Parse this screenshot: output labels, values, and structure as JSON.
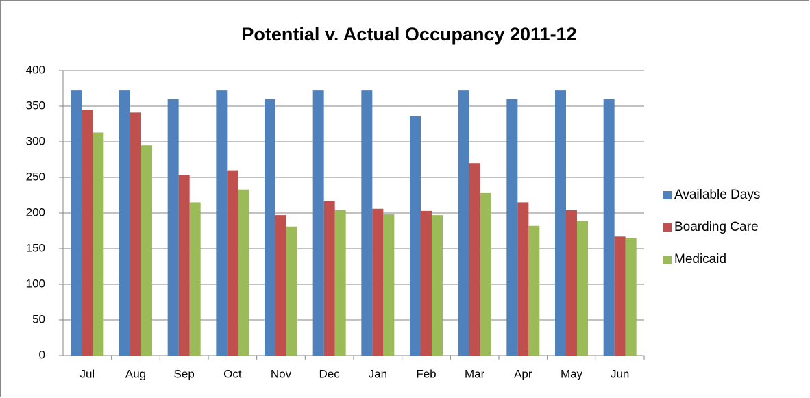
{
  "chart_data": {
    "type": "bar",
    "title": "Potential v. Actual Occupancy 2011-12",
    "categories": [
      "Jul",
      "Aug",
      "Sep",
      "Oct",
      "Nov",
      "Dec",
      "Jan",
      "Feb",
      "Mar",
      "Apr",
      "May",
      "Jun"
    ],
    "series": [
      {
        "name": "Available Days",
        "color": "#4f81bd",
        "values": [
          372,
          372,
          360,
          372,
          360,
          372,
          372,
          336,
          372,
          360,
          372,
          360
        ]
      },
      {
        "name": "Boarding Care",
        "color": "#c0504d",
        "values": [
          345,
          341,
          253,
          260,
          197,
          217,
          206,
          203,
          270,
          215,
          204,
          167
        ]
      },
      {
        "name": "Medicaid",
        "color": "#9bbb59",
        "values": [
          313,
          295,
          215,
          233,
          181,
          204,
          198,
          197,
          228,
          182,
          189,
          165
        ]
      }
    ],
    "ylim": [
      0,
      400
    ],
    "yticks": [
      0,
      50,
      100,
      150,
      200,
      250,
      300,
      350,
      400
    ],
    "grid": true,
    "legend": "right"
  }
}
